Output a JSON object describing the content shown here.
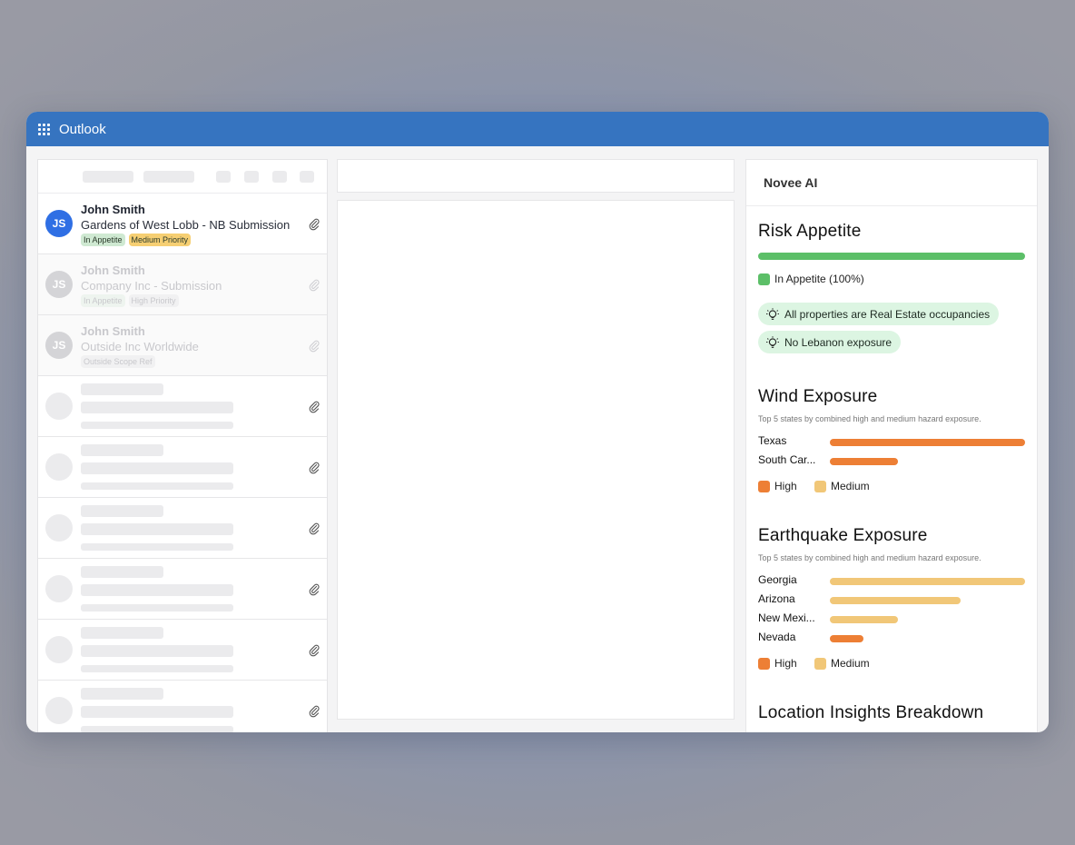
{
  "app": {
    "title": "Outlook"
  },
  "mail_list": {
    "items": [
      {
        "initials": "JS",
        "sender": "John Smith",
        "subject": "Gardens of West Lobb - NB Submission",
        "tags": [
          {
            "label": "In Appetite",
            "color": "#cfe9d2"
          },
          {
            "label": "Medium Priority",
            "color": "#f6cf73"
          }
        ]
      },
      {
        "initials": "JS",
        "sender": "John Smith",
        "subject": "Company Inc - Submission",
        "tags": [
          {
            "label": "In Appetite",
            "color": "#eef4ef"
          },
          {
            "label": "High Priority",
            "color": "#f1f1f2"
          }
        ]
      },
      {
        "initials": "JS",
        "sender": "John Smith",
        "subject": "Outside Inc Worldwide",
        "tags": [
          {
            "label": "Outside Scope Ref",
            "color": "#f1f1f2"
          }
        ]
      }
    ]
  },
  "ai_panel": {
    "title": "Novee AI",
    "risk_appetite": {
      "title": "Risk Appetite",
      "legend": "In Appetite (100%)",
      "value_percent": 100,
      "color": "#5cbf68",
      "insights": [
        "All properties are Real Estate occupancies",
        "No Lebanon exposure"
      ]
    },
    "wind": {
      "title": "Wind Exposure",
      "note": "Top 5 states by combined high and medium hazard exposure.",
      "legend_high": "High",
      "legend_medium": "Medium"
    },
    "earthquake": {
      "title": "Earthquake Exposure",
      "note": "Top 5 states by combined high and medium hazard exposure.",
      "legend_high": "High",
      "legend_medium": "Medium"
    },
    "location": {
      "title": "Location Insights Breakdown"
    }
  },
  "colors": {
    "high": "#ed7f35",
    "medium": "#f1c778",
    "brand": "#3674c0"
  },
  "chart_data": [
    {
      "type": "bar",
      "title": "Wind Exposure",
      "categories": [
        "Texas",
        "South Car..."
      ],
      "series": [
        {
          "name": "High",
          "values": [
            100,
            35
          ]
        },
        {
          "name": "Medium",
          "values": [
            0,
            0
          ]
        }
      ]
    },
    {
      "type": "bar",
      "title": "Earthquake Exposure",
      "categories": [
        "Georgia",
        "Arizona",
        "New Mexi...",
        "Nevada"
      ],
      "series": [
        {
          "name": "High",
          "values": [
            0,
            0,
            0,
            17
          ]
        },
        {
          "name": "Medium",
          "values": [
            100,
            67,
            35,
            0
          ]
        }
      ]
    }
  ]
}
